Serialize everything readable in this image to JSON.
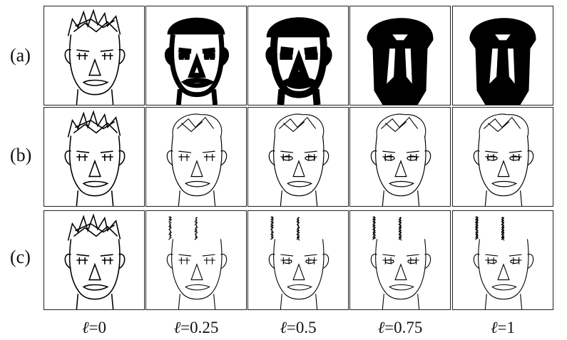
{
  "figure": {
    "rows": [
      {
        "label": "(a)"
      },
      {
        "label": "(b)"
      },
      {
        "label": "(c)"
      }
    ],
    "columns": [
      {
        "symbol": "ℓ",
        "value": "=0"
      },
      {
        "symbol": "ℓ",
        "value": "=0.25"
      },
      {
        "symbol": "ℓ",
        "value": "=0.5"
      },
      {
        "symbol": "ℓ",
        "value": "=0.75"
      },
      {
        "symbol": "ℓ",
        "value": "=1"
      }
    ]
  }
}
